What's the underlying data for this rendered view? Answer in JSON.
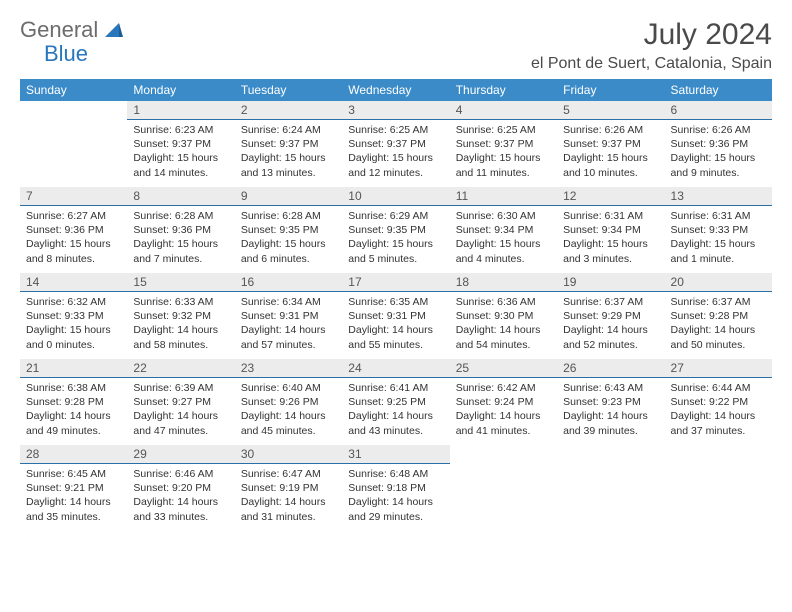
{
  "brand": {
    "part1": "General",
    "part2": "Blue"
  },
  "title": "July 2024",
  "location": "el Pont de Suert, Catalonia, Spain",
  "styling": {
    "header_bg": "#3b8bc9",
    "header_fg": "#ffffff",
    "daynum_bg": "#ececec",
    "daynum_border": "#2a6fa8",
    "body_font_size_pt": 10.5,
    "title_font_size_pt": 30,
    "logo_gray": "#6c6c6c",
    "logo_blue": "#2877bd"
  },
  "weekdays": [
    "Sunday",
    "Monday",
    "Tuesday",
    "Wednesday",
    "Thursday",
    "Friday",
    "Saturday"
  ],
  "weeks": [
    [
      {
        "n": "",
        "sr": "",
        "ss": "",
        "dl1": "",
        "dl2": ""
      },
      {
        "n": "1",
        "sr": "Sunrise: 6:23 AM",
        "ss": "Sunset: 9:37 PM",
        "dl1": "Daylight: 15 hours",
        "dl2": "and 14 minutes."
      },
      {
        "n": "2",
        "sr": "Sunrise: 6:24 AM",
        "ss": "Sunset: 9:37 PM",
        "dl1": "Daylight: 15 hours",
        "dl2": "and 13 minutes."
      },
      {
        "n": "3",
        "sr": "Sunrise: 6:25 AM",
        "ss": "Sunset: 9:37 PM",
        "dl1": "Daylight: 15 hours",
        "dl2": "and 12 minutes."
      },
      {
        "n": "4",
        "sr": "Sunrise: 6:25 AM",
        "ss": "Sunset: 9:37 PM",
        "dl1": "Daylight: 15 hours",
        "dl2": "and 11 minutes."
      },
      {
        "n": "5",
        "sr": "Sunrise: 6:26 AM",
        "ss": "Sunset: 9:37 PM",
        "dl1": "Daylight: 15 hours",
        "dl2": "and 10 minutes."
      },
      {
        "n": "6",
        "sr": "Sunrise: 6:26 AM",
        "ss": "Sunset: 9:36 PM",
        "dl1": "Daylight: 15 hours",
        "dl2": "and 9 minutes."
      }
    ],
    [
      {
        "n": "7",
        "sr": "Sunrise: 6:27 AM",
        "ss": "Sunset: 9:36 PM",
        "dl1": "Daylight: 15 hours",
        "dl2": "and 8 minutes."
      },
      {
        "n": "8",
        "sr": "Sunrise: 6:28 AM",
        "ss": "Sunset: 9:36 PM",
        "dl1": "Daylight: 15 hours",
        "dl2": "and 7 minutes."
      },
      {
        "n": "9",
        "sr": "Sunrise: 6:28 AM",
        "ss": "Sunset: 9:35 PM",
        "dl1": "Daylight: 15 hours",
        "dl2": "and 6 minutes."
      },
      {
        "n": "10",
        "sr": "Sunrise: 6:29 AM",
        "ss": "Sunset: 9:35 PM",
        "dl1": "Daylight: 15 hours",
        "dl2": "and 5 minutes."
      },
      {
        "n": "11",
        "sr": "Sunrise: 6:30 AM",
        "ss": "Sunset: 9:34 PM",
        "dl1": "Daylight: 15 hours",
        "dl2": "and 4 minutes."
      },
      {
        "n": "12",
        "sr": "Sunrise: 6:31 AM",
        "ss": "Sunset: 9:34 PM",
        "dl1": "Daylight: 15 hours",
        "dl2": "and 3 minutes."
      },
      {
        "n": "13",
        "sr": "Sunrise: 6:31 AM",
        "ss": "Sunset: 9:33 PM",
        "dl1": "Daylight: 15 hours",
        "dl2": "and 1 minute."
      }
    ],
    [
      {
        "n": "14",
        "sr": "Sunrise: 6:32 AM",
        "ss": "Sunset: 9:33 PM",
        "dl1": "Daylight: 15 hours",
        "dl2": "and 0 minutes."
      },
      {
        "n": "15",
        "sr": "Sunrise: 6:33 AM",
        "ss": "Sunset: 9:32 PM",
        "dl1": "Daylight: 14 hours",
        "dl2": "and 58 minutes."
      },
      {
        "n": "16",
        "sr": "Sunrise: 6:34 AM",
        "ss": "Sunset: 9:31 PM",
        "dl1": "Daylight: 14 hours",
        "dl2": "and 57 minutes."
      },
      {
        "n": "17",
        "sr": "Sunrise: 6:35 AM",
        "ss": "Sunset: 9:31 PM",
        "dl1": "Daylight: 14 hours",
        "dl2": "and 55 minutes."
      },
      {
        "n": "18",
        "sr": "Sunrise: 6:36 AM",
        "ss": "Sunset: 9:30 PM",
        "dl1": "Daylight: 14 hours",
        "dl2": "and 54 minutes."
      },
      {
        "n": "19",
        "sr": "Sunrise: 6:37 AM",
        "ss": "Sunset: 9:29 PM",
        "dl1": "Daylight: 14 hours",
        "dl2": "and 52 minutes."
      },
      {
        "n": "20",
        "sr": "Sunrise: 6:37 AM",
        "ss": "Sunset: 9:28 PM",
        "dl1": "Daylight: 14 hours",
        "dl2": "and 50 minutes."
      }
    ],
    [
      {
        "n": "21",
        "sr": "Sunrise: 6:38 AM",
        "ss": "Sunset: 9:28 PM",
        "dl1": "Daylight: 14 hours",
        "dl2": "and 49 minutes."
      },
      {
        "n": "22",
        "sr": "Sunrise: 6:39 AM",
        "ss": "Sunset: 9:27 PM",
        "dl1": "Daylight: 14 hours",
        "dl2": "and 47 minutes."
      },
      {
        "n": "23",
        "sr": "Sunrise: 6:40 AM",
        "ss": "Sunset: 9:26 PM",
        "dl1": "Daylight: 14 hours",
        "dl2": "and 45 minutes."
      },
      {
        "n": "24",
        "sr": "Sunrise: 6:41 AM",
        "ss": "Sunset: 9:25 PM",
        "dl1": "Daylight: 14 hours",
        "dl2": "and 43 minutes."
      },
      {
        "n": "25",
        "sr": "Sunrise: 6:42 AM",
        "ss": "Sunset: 9:24 PM",
        "dl1": "Daylight: 14 hours",
        "dl2": "and 41 minutes."
      },
      {
        "n": "26",
        "sr": "Sunrise: 6:43 AM",
        "ss": "Sunset: 9:23 PM",
        "dl1": "Daylight: 14 hours",
        "dl2": "and 39 minutes."
      },
      {
        "n": "27",
        "sr": "Sunrise: 6:44 AM",
        "ss": "Sunset: 9:22 PM",
        "dl1": "Daylight: 14 hours",
        "dl2": "and 37 minutes."
      }
    ],
    [
      {
        "n": "28",
        "sr": "Sunrise: 6:45 AM",
        "ss": "Sunset: 9:21 PM",
        "dl1": "Daylight: 14 hours",
        "dl2": "and 35 minutes."
      },
      {
        "n": "29",
        "sr": "Sunrise: 6:46 AM",
        "ss": "Sunset: 9:20 PM",
        "dl1": "Daylight: 14 hours",
        "dl2": "and 33 minutes."
      },
      {
        "n": "30",
        "sr": "Sunrise: 6:47 AM",
        "ss": "Sunset: 9:19 PM",
        "dl1": "Daylight: 14 hours",
        "dl2": "and 31 minutes."
      },
      {
        "n": "31",
        "sr": "Sunrise: 6:48 AM",
        "ss": "Sunset: 9:18 PM",
        "dl1": "Daylight: 14 hours",
        "dl2": "and 29 minutes."
      },
      {
        "n": "",
        "sr": "",
        "ss": "",
        "dl1": "",
        "dl2": ""
      },
      {
        "n": "",
        "sr": "",
        "ss": "",
        "dl1": "",
        "dl2": ""
      },
      {
        "n": "",
        "sr": "",
        "ss": "",
        "dl1": "",
        "dl2": ""
      }
    ]
  ]
}
